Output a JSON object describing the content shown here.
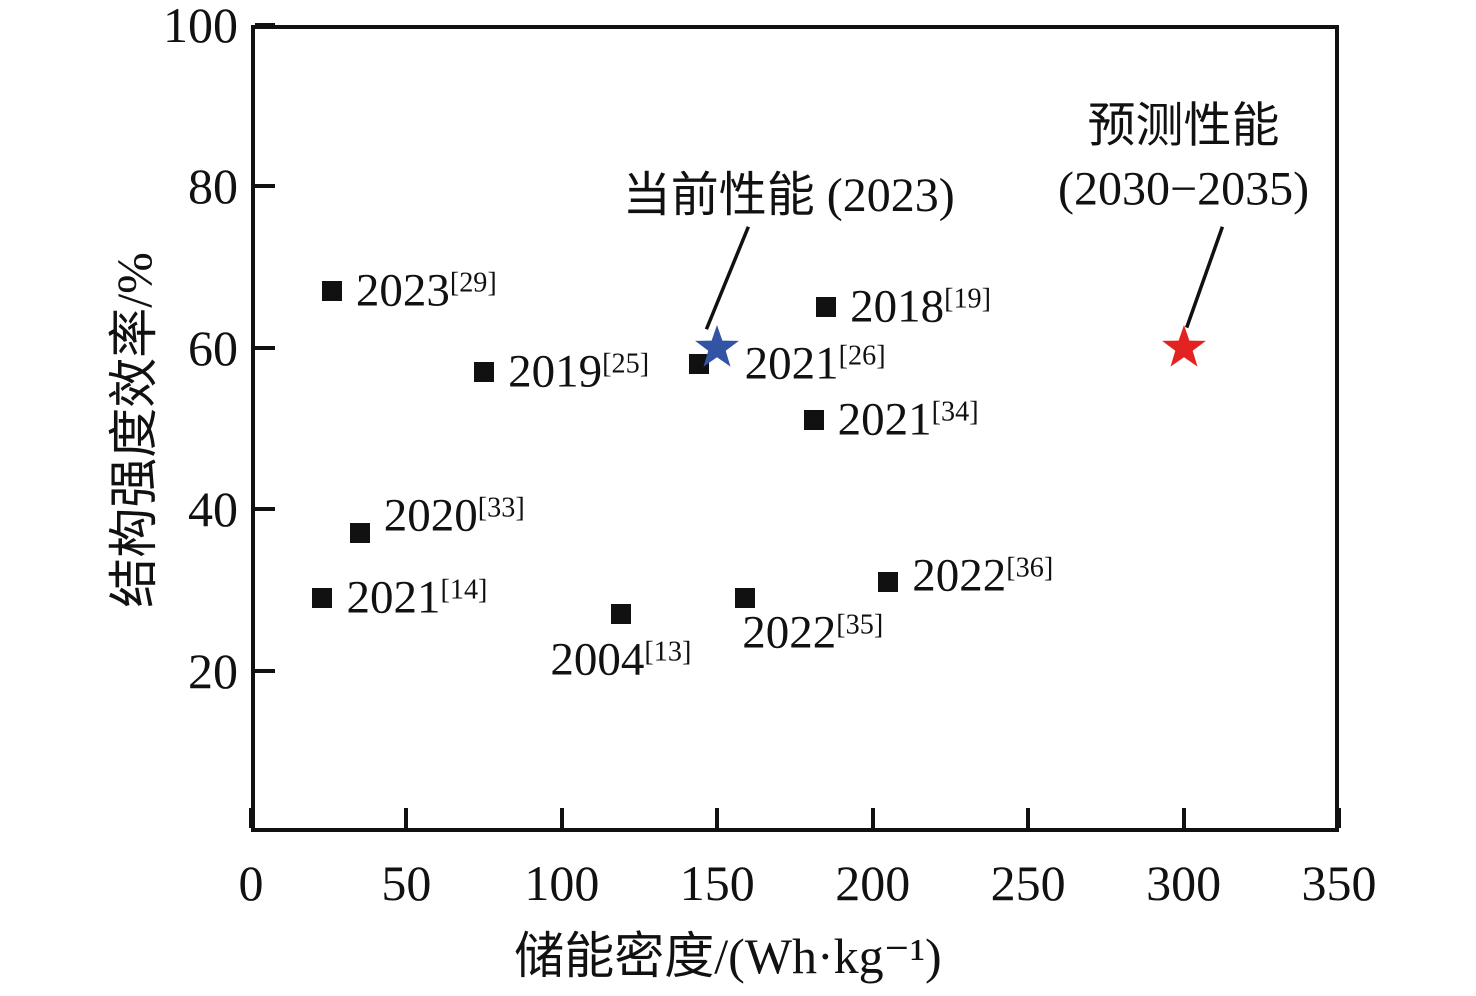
{
  "figure": {
    "background": "#ffffff",
    "frame_color": "#111111"
  },
  "chart_data": {
    "type": "scatter",
    "title": "",
    "xlabel": "储能密度/(Wh·kg⁻¹)",
    "ylabel": "结构强度效率/%",
    "xlim": [
      0,
      350
    ],
    "ylim": [
      0,
      100
    ],
    "x_ticks": [
      0,
      50,
      100,
      150,
      200,
      250,
      300,
      350
    ],
    "y_ticks": [
      20,
      40,
      60,
      80,
      100
    ],
    "grid": false,
    "legend": "none",
    "series": [
      {
        "name": "literature-data",
        "marker": "square",
        "color": "#111111",
        "points": [
          {
            "x": 26,
            "y": 67,
            "label": "2023",
            "ref": "[29]",
            "label_pos": "right"
          },
          {
            "x": 75,
            "y": 57,
            "label": "2019",
            "ref": "[25]",
            "label_pos": "right"
          },
          {
            "x": 144,
            "y": 58,
            "label": "2021",
            "ref": "[26]",
            "label_pos": "right",
            "label_dx": 22
          },
          {
            "x": 185,
            "y": 65,
            "label": "2018",
            "ref": "[19]",
            "label_pos": "right"
          },
          {
            "x": 181,
            "y": 51,
            "label": "2021",
            "ref": "[34]",
            "label_pos": "right"
          },
          {
            "x": 35,
            "y": 37,
            "label": "2020",
            "ref": "[33]",
            "label_pos": "right-up"
          },
          {
            "x": 23,
            "y": 29,
            "label": "2021",
            "ref": "[14]",
            "label_pos": "right"
          },
          {
            "x": 119,
            "y": 27,
            "label": "2004",
            "ref": "[13]",
            "label_pos": "below"
          },
          {
            "x": 159,
            "y": 29,
            "label": "2022",
            "ref": "[35]",
            "label_pos": "below-right"
          },
          {
            "x": 205,
            "y": 31,
            "label": "2022",
            "ref": "[36]",
            "label_pos": "right",
            "label_dy": -6
          }
        ]
      },
      {
        "name": "current-performance",
        "marker": "star",
        "color": "#3353a4",
        "points": [
          {
            "x": 150,
            "y": 60
          }
        ]
      },
      {
        "name": "predicted-performance",
        "marker": "star",
        "color": "#e32222",
        "points": [
          {
            "x": 300,
            "y": 60
          }
        ]
      }
    ],
    "annotations": [
      {
        "name": "current-performance-annotation",
        "text": "当前性能 (2023)",
        "x": 173,
        "y": 78.8,
        "line_from": {
          "x": 160,
          "y": 75
        },
        "line_to": {
          "x": 146.5,
          "y": 62.3
        }
      },
      {
        "name": "predicted-performance-annotation",
        "text": "预测性能\n(2030−2035)",
        "x": 300,
        "y": 83.5,
        "line_from": {
          "x": 312.5,
          "y": 75
        },
        "line_to": {
          "x": 301,
          "y": 62.5
        }
      }
    ]
  }
}
